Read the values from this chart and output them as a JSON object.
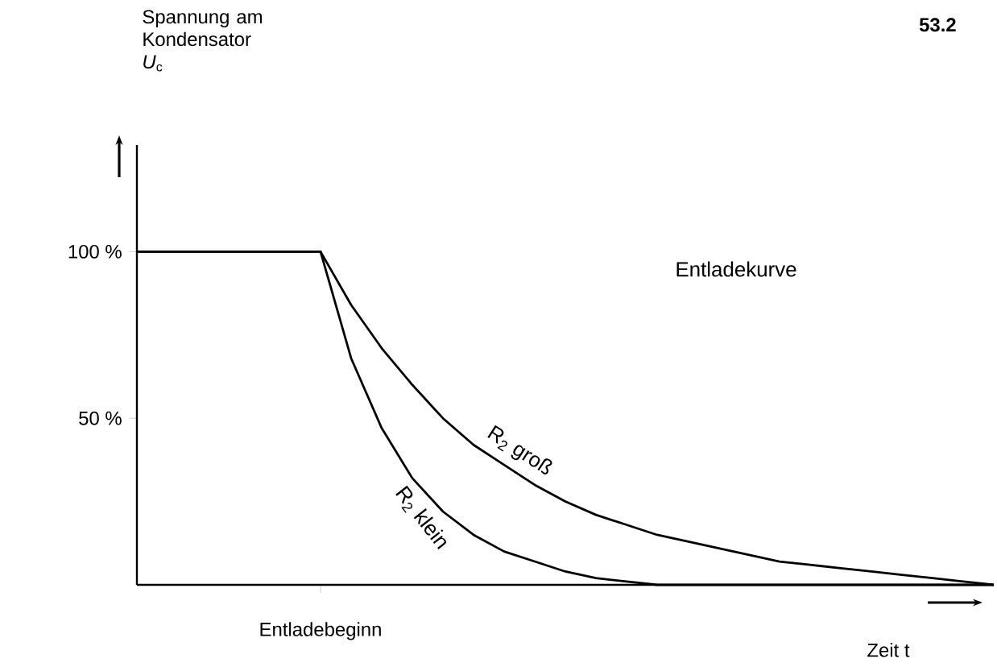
{
  "chart_data": {
    "type": "line",
    "title": "53.2",
    "ylabel": "Spannung am Kondensator *U*$_{c}$",
    "xlabel": "Zeit t",
    "annotations": [
      "Entladekurve"
    ],
    "categories": [
      null,
      null,
      null,
      null,
      null,
      null,
      "Entladebeginn",
      null,
      null,
      null,
      null,
      null,
      null,
      null,
      null,
      null,
      null,
      null,
      null,
      null,
      null,
      null,
      null,
      null,
      null,
      null,
      null,
      null,
      null
    ],
    "ylim": [
      0,
      132
    ],
    "yticks": [
      {
        "value": 50,
        "label": "50 %"
      },
      {
        "value": 100,
        "label": "100 %"
      }
    ],
    "series": [
      {
        "name": "R$_{2}$ groß",
        "color": "#000000",
        "values": [
          100,
          100,
          100,
          100,
          100,
          100,
          100,
          84,
          71,
          60,
          50,
          42,
          36,
          30,
          25,
          21,
          18,
          15,
          13,
          11,
          9,
          7,
          6,
          5,
          4,
          3,
          2,
          1,
          0
        ]
      },
      {
        "name": "R$_{2}$ klein",
        "color": "#000000",
        "values": [
          100,
          100,
          100,
          100,
          100,
          100,
          100,
          68,
          47,
          32,
          22,
          15,
          10,
          7,
          4,
          2,
          1,
          0,
          0,
          0,
          0,
          0,
          0,
          0,
          0,
          0,
          0,
          0,
          0
        ]
      }
    ]
  }
}
